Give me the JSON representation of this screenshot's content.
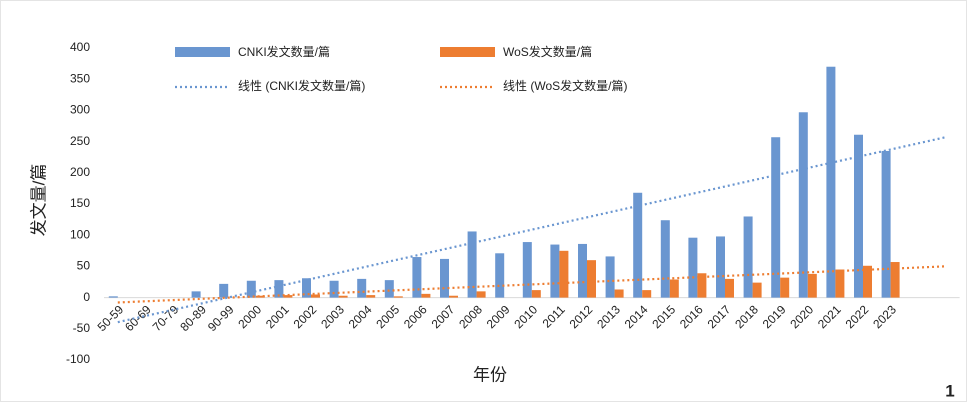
{
  "chart_data": {
    "type": "bar",
    "y_label": "发文量/篇",
    "x_label": "年份",
    "annotation": "1",
    "categories": [
      "50-59",
      "60-69",
      "70-79",
      "80-89",
      "90-99",
      "2000",
      "2001",
      "2002",
      "2003",
      "2004",
      "2005",
      "2006",
      "2007",
      "2008",
      "2009",
      "2010",
      "2011",
      "2012",
      "2013",
      "2014",
      "2015",
      "2016",
      "2017",
      "2018",
      "2019",
      "2020",
      "2021",
      "2022",
      "2023"
    ],
    "series": [
      {
        "name": "CNKI发文数量/篇",
        "color": "#6a96d0",
        "trend_name": "线性 (CNKI发文数量/篇)",
        "values": [
          2,
          0,
          0,
          10,
          22,
          27,
          28,
          31,
          27,
          30,
          28,
          65,
          62,
          106,
          71,
          89,
          85,
          86,
          66,
          168,
          124,
          96,
          98,
          130,
          257,
          297,
          370,
          261,
          235
        ]
      },
      {
        "name": "WoS发文数量/篇",
        "color": "#ed7d31",
        "trend_name": "线性 (WoS发文数量/篇)",
        "values": [
          0,
          0,
          0,
          0,
          0,
          3,
          4,
          5,
          3,
          4,
          2,
          6,
          3,
          10,
          0,
          12,
          75,
          60,
          13,
          12,
          29,
          39,
          30,
          24,
          32,
          38,
          45,
          51,
          57
        ]
      }
    ],
    "trendline": {
      "type": "linear",
      "forward": 2
    },
    "ylim": [
      -100,
      400
    ],
    "yticks": [
      -100,
      -50,
      0,
      50,
      100,
      150,
      200,
      250,
      300,
      350,
      400
    ],
    "grid": false
  }
}
